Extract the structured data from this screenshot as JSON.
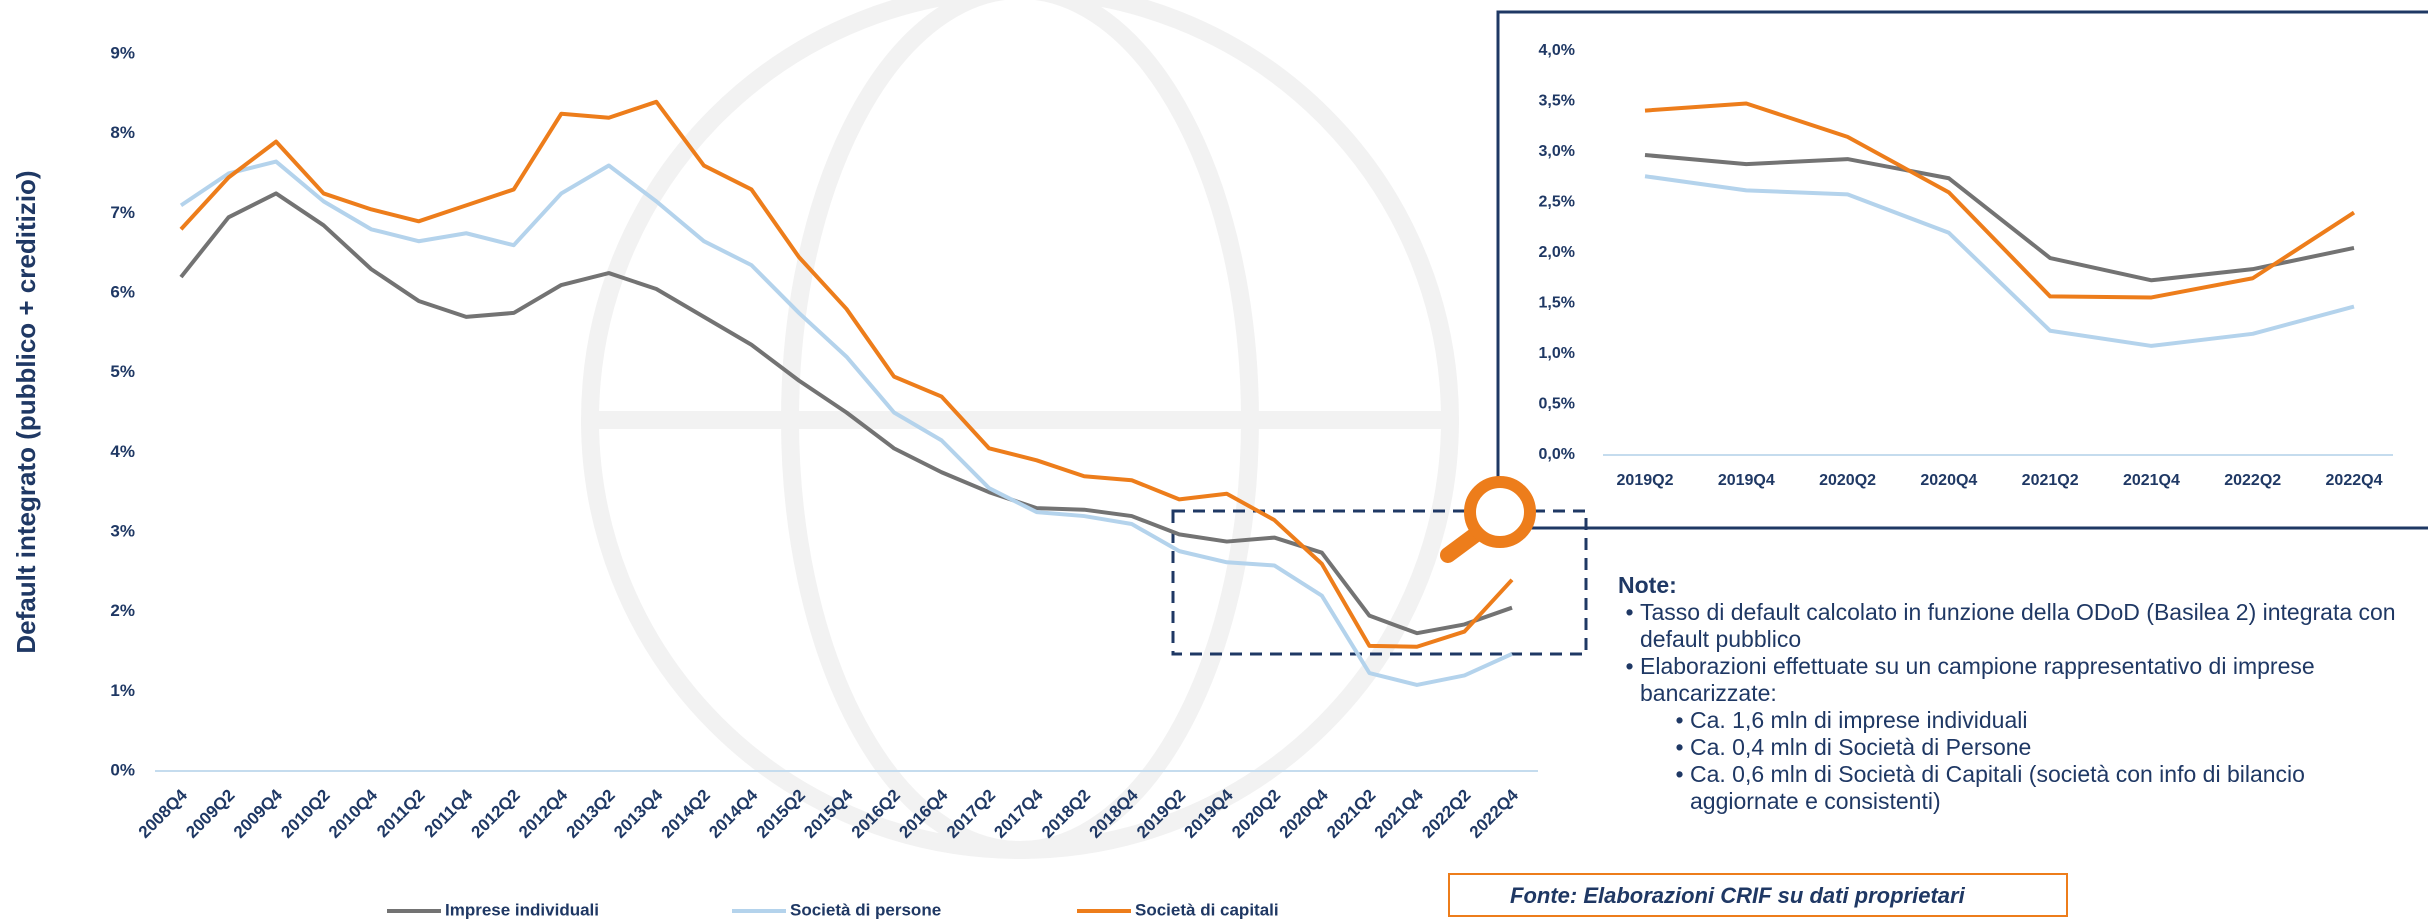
{
  "chart_data": [
    {
      "type": "line",
      "y_label": "Default integrato (pubblico + creditizio)",
      "categories": [
        "2008Q4",
        "2009Q2",
        "2009Q4",
        "2010Q2",
        "2010Q4",
        "2011Q2",
        "2011Q4",
        "2012Q2",
        "2012Q4",
        "2013Q2",
        "2013Q4",
        "2014Q2",
        "2014Q4",
        "2015Q2",
        "2015Q4",
        "2016Q2",
        "2016Q4",
        "2017Q2",
        "2017Q4",
        "2018Q2",
        "2018Q4",
        "2019Q2",
        "2019Q4",
        "2020Q2",
        "2020Q4",
        "2021Q2",
        "2021Q4",
        "2022Q2",
        "2022Q4"
      ],
      "series": [
        {
          "name": "Imprese individuali",
          "color": "#737373",
          "values": [
            6.2,
            6.95,
            7.25,
            6.85,
            6.3,
            5.9,
            5.7,
            5.75,
            6.1,
            6.25,
            6.05,
            5.7,
            5.35,
            4.9,
            4.5,
            4.05,
            3.75,
            3.5,
            3.3,
            3.28,
            3.2,
            2.97,
            2.88,
            2.93,
            2.74,
            1.95,
            1.73,
            1.84,
            2.05
          ]
        },
        {
          "name": "Società di persone",
          "color": "#b4d3ec",
          "values": [
            7.1,
            7.5,
            7.65,
            7.15,
            6.8,
            6.65,
            6.75,
            6.6,
            7.25,
            7.6,
            7.15,
            6.65,
            6.35,
            5.75,
            5.2,
            4.5,
            4.15,
            3.55,
            3.25,
            3.2,
            3.1,
            2.76,
            2.62,
            2.58,
            2.2,
            1.23,
            1.08,
            1.2,
            1.47
          ]
        },
        {
          "name": "Società di capitali",
          "color": "#ed7d1b",
          "values": [
            6.8,
            7.45,
            7.9,
            7.25,
            7.05,
            6.9,
            7.1,
            7.3,
            8.25,
            8.2,
            8.4,
            7.6,
            7.3,
            6.45,
            5.8,
            4.95,
            4.7,
            4.05,
            3.9,
            3.7,
            3.65,
            3.41,
            3.48,
            3.15,
            2.6,
            1.57,
            1.56,
            1.75,
            2.4
          ]
        }
      ],
      "ylim": [
        0,
        9
      ],
      "yticks": [
        {
          "value": 0,
          "label": "0%"
        },
        {
          "value": 1,
          "label": "1%"
        },
        {
          "value": 2,
          "label": "2%"
        },
        {
          "value": 3,
          "label": "3%"
        },
        {
          "value": 4,
          "label": "4%"
        },
        {
          "value": 5,
          "label": "5%"
        },
        {
          "value": 6,
          "label": "6%"
        },
        {
          "value": 7,
          "label": "7%"
        },
        {
          "value": 8,
          "label": "8%"
        },
        {
          "value": 9,
          "label": "9%"
        }
      ]
    },
    {
      "type": "line",
      "categories": [
        "2019Q2",
        "2019Q4",
        "2020Q2",
        "2020Q4",
        "2021Q2",
        "2021Q4",
        "2022Q2",
        "2022Q4"
      ],
      "series": [
        {
          "color": "#737373",
          "values": [
            2.97,
            2.88,
            2.93,
            2.74,
            1.95,
            1.73,
            1.84,
            2.05
          ]
        },
        {
          "color": "#b4d3ec",
          "values": [
            2.76,
            2.62,
            2.58,
            2.2,
            1.23,
            1.08,
            1.2,
            1.47
          ]
        },
        {
          "color": "#ed7d1b",
          "values": [
            3.41,
            3.48,
            3.15,
            2.6,
            1.57,
            1.56,
            1.75,
            2.4
          ]
        }
      ],
      "ylim": [
        0,
        4
      ],
      "yticks": [
        {
          "value": 0,
          "label": "0,0%"
        },
        {
          "value": 0.5,
          "label": "0,5%"
        },
        {
          "value": 1,
          "label": "1,0%"
        },
        {
          "value": 1.5,
          "label": "1,5%"
        },
        {
          "value": 2,
          "label": "2,0%"
        },
        {
          "value": 2.5,
          "label": "2,5%"
        },
        {
          "value": 3,
          "label": "3,0%"
        },
        {
          "value": 3.5,
          "label": "3,5%"
        },
        {
          "value": 4,
          "label": "4,0%"
        }
      ]
    }
  ],
  "notes": {
    "title": "Note:",
    "items": [
      {
        "text": "Tasso di default calcolato in funzione della ODoD (Basilea 2) integrata con default pubblico",
        "subitems": []
      },
      {
        "text": "Elaborazioni effettuate su un campione rappresentativo di imprese bancarizzate:",
        "subitems": [
          "Ca. 1,6 mln di imprese individuali",
          "Ca. 0,4 mln di Società di Persone",
          "Ca. 0,6 mln di Società di Capitali (società con info di bilancio aggiornate e consistenti)"
        ]
      }
    ]
  },
  "source": "Fonte: Elaborazioni CRIF su dati proprietari"
}
